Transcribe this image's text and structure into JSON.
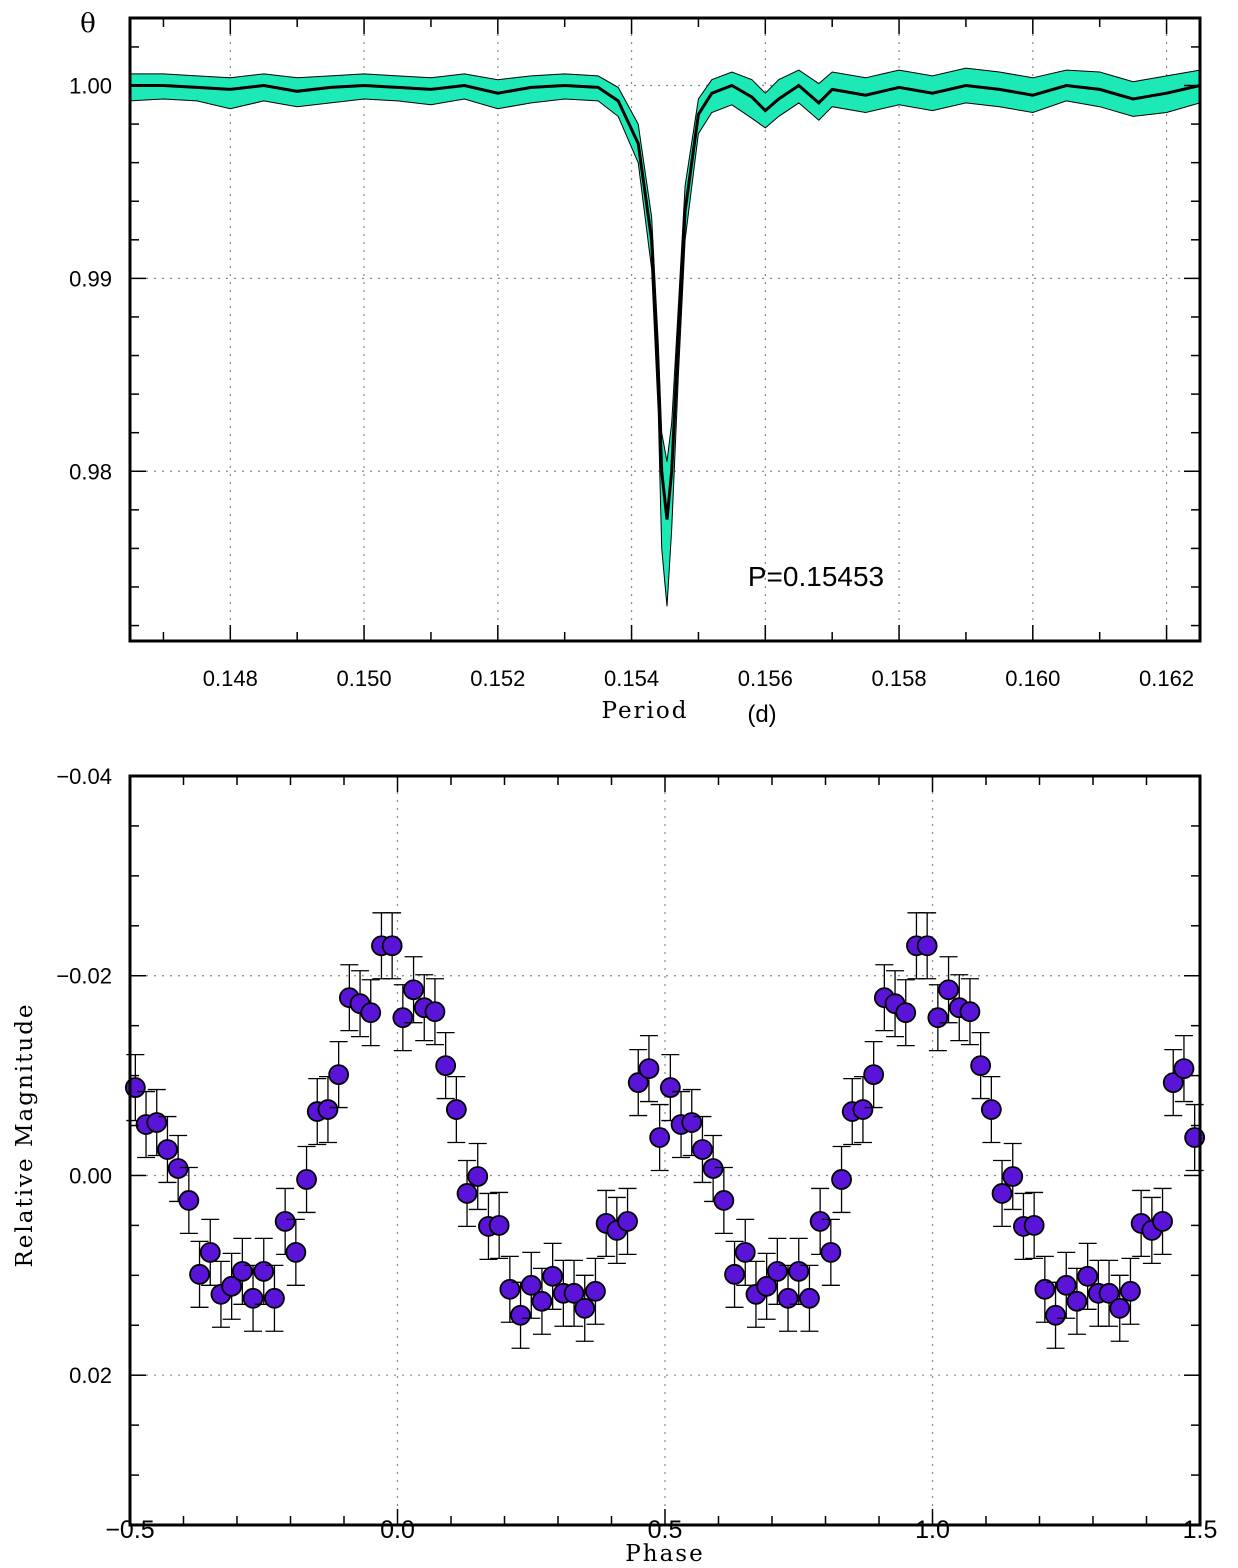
{
  "chart_data": [
    {
      "type": "line",
      "ylabel": "θ",
      "xlabel": "Period",
      "xunit": "(d)",
      "xlim": [
        0.1465,
        0.1625
      ],
      "ylim": [
        0.9712,
        1.0035
      ],
      "x_ticks": [
        "0.148",
        "0.150",
        "0.152",
        "0.154",
        "0.156",
        "0.158",
        "0.160",
        "0.162"
      ],
      "x_tick_values": [
        0.148,
        0.15,
        0.152,
        0.154,
        0.156,
        0.158,
        0.16,
        0.162
      ],
      "y_ticks": [
        "1.00",
        "0.99",
        "0.98"
      ],
      "y_tick_values": [
        1.0,
        0.99,
        0.98
      ],
      "annotation": "P=0.15453",
      "grid": true,
      "band_color": "#1de9b6",
      "line_color": "#000000",
      "x": [
        0.1465,
        0.147,
        0.1475,
        0.148,
        0.1485,
        0.149,
        0.1495,
        0.15,
        0.1505,
        0.151,
        0.1515,
        0.152,
        0.1525,
        0.153,
        0.1535,
        0.1538,
        0.1541,
        0.1543,
        0.1544,
        0.15445,
        0.15453,
        0.1546,
        0.1547,
        0.1548,
        0.155,
        0.1552,
        0.1555,
        0.1558,
        0.156,
        0.1562,
        0.1565,
        0.1568,
        0.157,
        0.1575,
        0.158,
        0.1585,
        0.159,
        0.1595,
        0.16,
        0.1605,
        0.161,
        0.1615,
        0.162,
        0.1625
      ],
      "values": [
        1.0,
        1.0,
        0.9999,
        0.9998,
        1.0,
        0.9997,
        0.9999,
        1.0,
        0.9999,
        0.9998,
        1.0,
        0.9996,
        0.9999,
        1.0,
        0.9999,
        0.9992,
        0.997,
        0.992,
        0.985,
        0.98,
        0.9775,
        0.98,
        0.987,
        0.9935,
        0.9985,
        0.9996,
        1.0,
        0.9994,
        0.9987,
        0.9993,
        1.0,
        0.9991,
        0.9998,
        0.9995,
        0.9999,
        0.9996,
        1.0,
        0.9998,
        0.9995,
        1.0,
        0.9998,
        0.9993,
        0.9996,
        1.0
      ],
      "band_lower": [
        0.9992,
        0.9993,
        0.9992,
        0.9988,
        0.9992,
        0.9989,
        0.9991,
        0.9993,
        0.9992,
        0.999,
        0.9993,
        0.9988,
        0.9991,
        0.9993,
        0.9992,
        0.9984,
        0.996,
        0.9905,
        0.983,
        0.976,
        0.973,
        0.977,
        0.985,
        0.992,
        0.9975,
        0.9986,
        0.999,
        0.9983,
        0.9978,
        0.9984,
        0.9991,
        0.9982,
        0.9989,
        0.9986,
        0.999,
        0.9987,
        0.9991,
        0.9989,
        0.9986,
        0.9992,
        0.9989,
        0.9984,
        0.9986,
        0.9991
      ],
      "band_upper": [
        1.0006,
        1.0006,
        1.0005,
        1.0004,
        1.0006,
        1.0004,
        1.0005,
        1.0006,
        1.0005,
        1.0004,
        1.0006,
        1.0003,
        1.0005,
        1.0006,
        1.0005,
        0.9999,
        0.998,
        0.9932,
        0.9866,
        0.982,
        0.9805,
        0.9825,
        0.9886,
        0.9948,
        0.9993,
        1.0003,
        1.0007,
        1.0003,
        0.9996,
        1.0003,
        1.0008,
        1.0001,
        1.0007,
        1.0004,
        1.0008,
        1.0005,
        1.0009,
        1.0007,
        1.0004,
        1.0008,
        1.0007,
        1.0002,
        1.0005,
        1.0008
      ]
    },
    {
      "type": "scatter",
      "xlabel": "Phase",
      "ylabel": "Relative Magnitude",
      "xlim": [
        -0.5,
        1.5
      ],
      "ylim": [
        0.035,
        -0.04
      ],
      "y_inverted": true,
      "x_ticks": [
        "−0.5",
        "0.0",
        "0.5",
        "1.0",
        "1.5"
      ],
      "x_tick_values": [
        -0.5,
        0.0,
        0.5,
        1.0,
        1.5
      ],
      "y_ticks": [
        "−0.04",
        "−0.02",
        "0.00",
        "0.02"
      ],
      "y_tick_values": [
        -0.04,
        -0.02,
        0.0,
        0.02
      ],
      "grid": true,
      "marker_color": "#5a14d8",
      "error": 0.0033,
      "x": [
        0.01,
        0.03,
        0.05,
        0.07,
        0.09,
        0.11,
        0.13,
        0.15,
        0.17,
        0.19,
        0.21,
        0.23,
        0.25,
        0.27,
        0.29,
        0.31,
        0.33,
        0.35,
        0.37,
        0.39,
        0.41,
        0.43,
        0.45,
        0.47,
        0.49,
        0.51,
        0.53,
        0.55,
        0.57,
        0.59,
        0.61,
        0.63,
        0.65,
        0.67,
        0.69,
        0.71,
        0.73,
        0.75,
        0.77,
        0.79,
        0.81,
        0.83,
        0.85,
        0.87,
        0.89,
        0.91,
        0.93,
        0.95,
        0.97,
        0.99
      ],
      "values": [
        -0.0158,
        -0.0186,
        -0.0168,
        -0.0164,
        -0.011,
        -0.0066,
        0.0018,
        0.0001,
        0.0051,
        0.005,
        0.0114,
        0.014,
        0.011,
        0.0126,
        0.0101,
        0.0118,
        0.0118,
        0.0133,
        0.0116,
        0.0048,
        0.0055,
        0.0046,
        -0.0093,
        -0.0107,
        -0.0038,
        -0.0088,
        -0.0051,
        -0.0053,
        -0.0026,
        -0.0007,
        0.0025,
        0.0099,
        0.0077,
        0.0119,
        0.0111,
        0.0096,
        0.0123,
        0.0096,
        0.0123,
        0.0046,
        0.0077,
        0.0004,
        -0.0064,
        -0.0066,
        -0.0101,
        -0.0178,
        -0.0172,
        -0.0163,
        -0.023,
        -0.023
      ]
    }
  ]
}
